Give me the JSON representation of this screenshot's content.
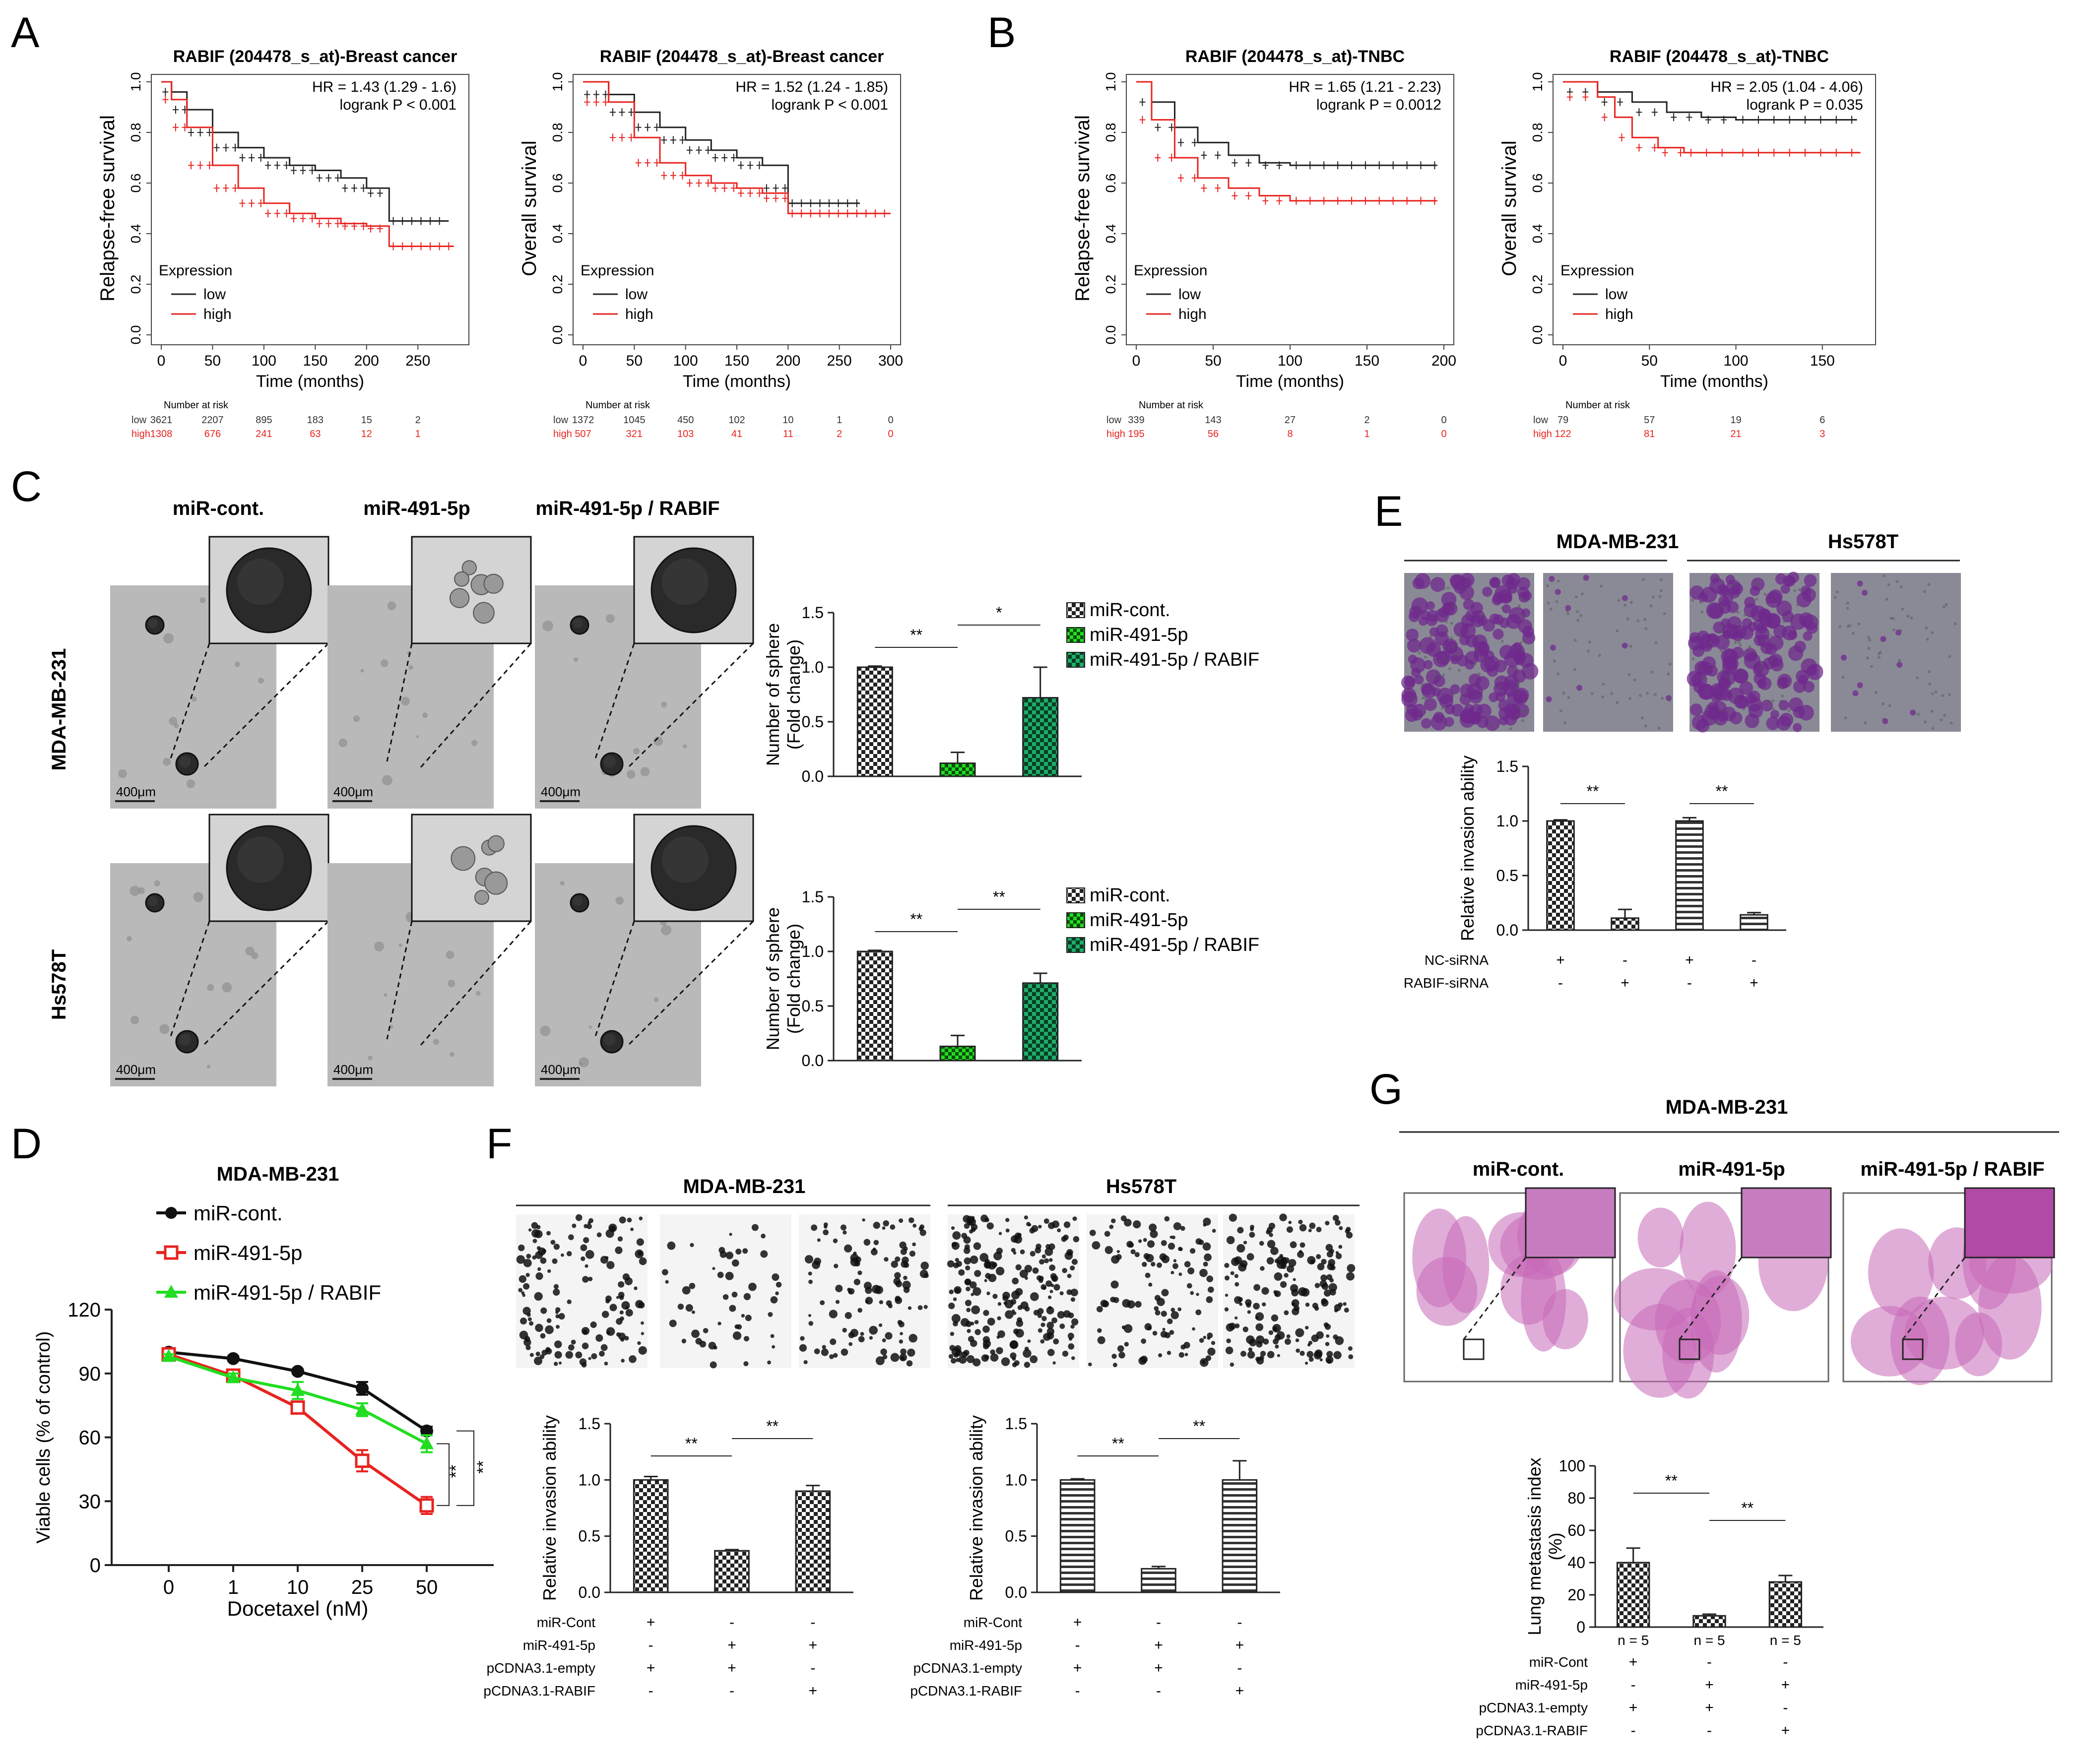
{
  "panel_letters": {
    "A": "A",
    "B": "B",
    "C": "C",
    "D": "D",
    "E": "E",
    "F": "F",
    "G": "G"
  },
  "colors": {
    "low": "#222222",
    "high": "#e8231f",
    "red": "#e8231f",
    "green": "#22dd22",
    "black": "#111111",
    "he_pink": "#c76ab8",
    "crystal": "#6f2a8c",
    "micro_bg": "#b9b9b9"
  },
  "chart_data": [
    {
      "id": "A1",
      "type": "line",
      "title": "RABIF (204478_s_at)-Breast cancer",
      "xlabel": "Time (months)",
      "ylabel": "Relapse-free survival",
      "xlim": [
        0,
        290
      ],
      "ylim": [
        0,
        1.0
      ],
      "xticks": [
        "0",
        "50",
        "100",
        "150",
        "200",
        "250"
      ],
      "yticks": [
        "0.0",
        "0.2",
        "0.4",
        "0.6",
        "0.8",
        "1.0"
      ],
      "hr_text": "HR = 1.43 (1.29 - 1.6)",
      "logrank_text": "logrank   P < 0.001",
      "legend_title": "Expression",
      "series": [
        {
          "name": "low",
          "points": [
            [
              0,
              1.0
            ],
            [
              10,
              0.96
            ],
            [
              25,
              0.89
            ],
            [
              50,
              0.8
            ],
            [
              75,
              0.74
            ],
            [
              100,
              0.7
            ],
            [
              125,
              0.67
            ],
            [
              150,
              0.65
            ],
            [
              175,
              0.62
            ],
            [
              200,
              0.58
            ],
            [
              222,
              0.56
            ],
            [
              222,
              0.45
            ],
            [
              280,
              0.45
            ]
          ]
        },
        {
          "name": "high",
          "points": [
            [
              0,
              1.0
            ],
            [
              10,
              0.93
            ],
            [
              25,
              0.82
            ],
            [
              50,
              0.67
            ],
            [
              75,
              0.58
            ],
            [
              100,
              0.52
            ],
            [
              125,
              0.48
            ],
            [
              150,
              0.46
            ],
            [
              175,
              0.44
            ],
            [
              200,
              0.43
            ],
            [
              222,
              0.42
            ],
            [
              222,
              0.35
            ],
            [
              285,
              0.35
            ]
          ]
        }
      ],
      "risk_header": "Number at risk",
      "risk_times": [
        0,
        50,
        100,
        150,
        200,
        250
      ],
      "risk_low": [
        "3621",
        "2207",
        "895",
        "183",
        "15",
        "2"
      ],
      "risk_high": [
        "1308",
        "676",
        "241",
        "63",
        "12",
        "1"
      ]
    },
    {
      "id": "A2",
      "type": "line",
      "title": "RABIF (204478_s_at)-Breast cancer",
      "xlabel": "Time (months)",
      "ylabel": "Overall survival",
      "xlim": [
        0,
        300
      ],
      "ylim": [
        0,
        1.0
      ],
      "xticks": [
        "0",
        "50",
        "100",
        "150",
        "200",
        "250",
        "300"
      ],
      "yticks": [
        "0.0",
        "0.2",
        "0.4",
        "0.6",
        "0.8",
        "1.0"
      ],
      "hr_text": "HR = 1.52 (1.24 - 1.85)",
      "logrank_text": "logrank   P < 0.001",
      "legend_title": "Expression",
      "series": [
        {
          "name": "low",
          "points": [
            [
              0,
              1.0
            ],
            [
              25,
              0.95
            ],
            [
              50,
              0.88
            ],
            [
              75,
              0.82
            ],
            [
              100,
              0.77
            ],
            [
              125,
              0.73
            ],
            [
              150,
              0.7
            ],
            [
              175,
              0.67
            ],
            [
              200,
              0.58
            ],
            [
              200,
              0.52
            ],
            [
              270,
              0.52
            ]
          ]
        },
        {
          "name": "high",
          "points": [
            [
              0,
              1.0
            ],
            [
              25,
              0.92
            ],
            [
              50,
              0.78
            ],
            [
              75,
              0.68
            ],
            [
              100,
              0.63
            ],
            [
              125,
              0.6
            ],
            [
              150,
              0.58
            ],
            [
              175,
              0.56
            ],
            [
              200,
              0.54
            ],
            [
              200,
              0.48
            ],
            [
              300,
              0.48
            ]
          ]
        }
      ],
      "risk_header": "Number at risk",
      "risk_times": [
        0,
        50,
        100,
        150,
        200,
        250,
        300
      ],
      "risk_low": [
        "1372",
        "1045",
        "450",
        "102",
        "10",
        "1",
        "0"
      ],
      "risk_high": [
        "507",
        "321",
        "103",
        "41",
        "11",
        "2",
        "0"
      ]
    },
    {
      "id": "B1",
      "type": "line",
      "title": "RABIF (204478_s_at)-TNBC",
      "xlabel": "Time (months)",
      "ylabel": "Relapse-free survival",
      "xlim": [
        0,
        200
      ],
      "ylim": [
        0,
        1.0
      ],
      "xticks": [
        "0",
        "50",
        "100",
        "150",
        "200"
      ],
      "yticks": [
        "0.0",
        "0.2",
        "0.4",
        "0.6",
        "0.8",
        "1.0"
      ],
      "hr_text": "HR = 1.65 (1.21 - 2.23)",
      "logrank_text": "logrank P = 0.0012",
      "legend_title": "Expression",
      "series": [
        {
          "name": "low",
          "points": [
            [
              0,
              1.0
            ],
            [
              10,
              0.92
            ],
            [
              25,
              0.82
            ],
            [
              40,
              0.76
            ],
            [
              60,
              0.71
            ],
            [
              80,
              0.68
            ],
            [
              100,
              0.67
            ],
            [
              195,
              0.67
            ]
          ]
        },
        {
          "name": "high",
          "points": [
            [
              0,
              1.0
            ],
            [
              10,
              0.85
            ],
            [
              25,
              0.7
            ],
            [
              40,
              0.62
            ],
            [
              60,
              0.58
            ],
            [
              80,
              0.55
            ],
            [
              100,
              0.53
            ],
            [
              195,
              0.53
            ]
          ]
        }
      ],
      "risk_header": "Number at risk",
      "risk_times": [
        0,
        50,
        100,
        150,
        200
      ],
      "risk_low": [
        "339",
        "143",
        "27",
        "2",
        "0"
      ],
      "risk_high": [
        "195",
        "56",
        "8",
        "1",
        "0"
      ]
    },
    {
      "id": "B2",
      "type": "line",
      "title": "RABIF (204478_s_at)-TNBC",
      "xlabel": "Time (months)",
      "ylabel": "Overall survival",
      "xlim": [
        0,
        175
      ],
      "ylim": [
        0,
        1.0
      ],
      "xticks": [
        "0",
        "50",
        "100",
        "150"
      ],
      "yticks": [
        "0.0",
        "0.2",
        "0.4",
        "0.6",
        "0.8",
        "1.0"
      ],
      "hr_text": "HR = 2.05 (1.04 - 4.06)",
      "logrank_text": "logrank P = 0.035",
      "legend_title": "Expression",
      "series": [
        {
          "name": "low",
          "points": [
            [
              0,
              1.0
            ],
            [
              20,
              0.96
            ],
            [
              40,
              0.92
            ],
            [
              60,
              0.88
            ],
            [
              80,
              0.86
            ],
            [
              100,
              0.85
            ],
            [
              170,
              0.85
            ]
          ]
        },
        {
          "name": "high",
          "points": [
            [
              0,
              1.0
            ],
            [
              20,
              0.94
            ],
            [
              30,
              0.86
            ],
            [
              40,
              0.78
            ],
            [
              55,
              0.74
            ],
            [
              70,
              0.72
            ],
            [
              100,
              0.72
            ],
            [
              172,
              0.72
            ]
          ]
        }
      ],
      "risk_header": "Number at risk",
      "risk_times": [
        0,
        50,
        100,
        150
      ],
      "risk_low": [
        "79",
        "57",
        "19",
        "6"
      ],
      "risk_high": [
        "122",
        "81",
        "21",
        "3"
      ]
    },
    {
      "id": "C1",
      "type": "bar",
      "ylabel": "Number of sphere\n(Fold change)",
      "categories": [
        "miR-cont.",
        "miR-491-5p",
        "miR-491-5p / RABIF"
      ],
      "values": [
        1.0,
        0.12,
        0.72
      ],
      "errors": [
        0.01,
        0.1,
        0.28
      ],
      "ylim": [
        0,
        1.5
      ],
      "yticks": [
        "0.0",
        "0.5",
        "1.0",
        "1.5"
      ],
      "sig": [
        "**",
        "*"
      ]
    },
    {
      "id": "C2",
      "type": "bar",
      "ylabel": "Number of sphere\n(Fold change)",
      "categories": [
        "miR-cont.",
        "miR-491-5p",
        "miR-491-5p / RABIF"
      ],
      "values": [
        1.0,
        0.13,
        0.71
      ],
      "errors": [
        0.01,
        0.1,
        0.09
      ],
      "ylim": [
        0,
        1.5
      ],
      "yticks": [
        "0.0",
        "0.5",
        "1.0",
        "1.5"
      ],
      "sig": [
        "**",
        "**"
      ]
    },
    {
      "id": "D",
      "type": "line",
      "title": "MDA-MB-231",
      "xlabel": "Docetaxel (nM)",
      "ylabel": "Viable cells (% of control)",
      "categories": [
        "0",
        "1",
        "10",
        "25",
        "50"
      ],
      "ylim": [
        0,
        120
      ],
      "yticks": [
        "0",
        "30",
        "60",
        "90",
        "120"
      ],
      "series": [
        {
          "name": "miR-cont.",
          "values": [
            100,
            97,
            91,
            83,
            63
          ],
          "errors": [
            1,
            1,
            1,
            3,
            2
          ]
        },
        {
          "name": "miR-491-5p",
          "values": [
            99,
            89,
            74,
            49,
            28
          ],
          "errors": [
            1,
            1,
            2,
            5,
            4
          ]
        },
        {
          "name": "miR-491-5p / RABIF",
          "values": [
            98,
            88,
            82,
            73,
            57
          ],
          "errors": [
            1,
            2,
            4,
            3,
            4
          ]
        }
      ],
      "sig": [
        "**",
        "**"
      ]
    },
    {
      "id": "E",
      "type": "bar",
      "ylabel": "Relative invasion ability",
      "values": [
        1.0,
        0.11,
        1.0,
        0.14
      ],
      "errors": [
        0.01,
        0.08,
        0.03,
        0.02
      ],
      "ylim": [
        0,
        1.5
      ],
      "yticks": [
        "0.0",
        "0.5",
        "1.0",
        "1.5"
      ],
      "sig": [
        "**",
        "**"
      ],
      "row_labels": [
        "NC-siRNA",
        "RABIF-siRNA"
      ],
      "signs": [
        [
          "+",
          "-",
          "+",
          "-"
        ],
        [
          "-",
          "+",
          "-",
          "+"
        ]
      ]
    },
    {
      "id": "F1",
      "type": "bar",
      "ylabel": "Relative invasion ability",
      "values": [
        1.0,
        0.37,
        0.9
      ],
      "errors": [
        0.03,
        0.01,
        0.05
      ],
      "ylim": [
        0,
        1.5
      ],
      "yticks": [
        "0.0",
        "0.5",
        "1.0",
        "1.5"
      ],
      "sig": [
        "**",
        "**"
      ],
      "row_labels": [
        "miR-Cont",
        "miR-491-5p",
        "pCDNA3.1-empty",
        "pCDNA3.1-RABIF"
      ],
      "signs": [
        [
          "+",
          "-",
          "-"
        ],
        [
          "-",
          "+",
          "+"
        ],
        [
          "+",
          "+",
          "-"
        ],
        [
          "-",
          "-",
          "+"
        ]
      ]
    },
    {
      "id": "F2",
      "type": "bar",
      "ylabel": "Relative invasion ability",
      "values": [
        1.0,
        0.21,
        1.0
      ],
      "errors": [
        0.01,
        0.02,
        0.17
      ],
      "ylim": [
        0,
        1.5
      ],
      "yticks": [
        "0.0",
        "0.5",
        "1.0",
        "1.5"
      ],
      "sig": [
        "**",
        "**"
      ],
      "row_labels": [
        "miR-Cont",
        "miR-491-5p",
        "pCDNA3.1-empty",
        "pCDNA3.1-RABIF"
      ],
      "signs": [
        [
          "+",
          "-",
          "-"
        ],
        [
          "-",
          "+",
          "+"
        ],
        [
          "+",
          "+",
          "-"
        ],
        [
          "-",
          "-",
          "+"
        ]
      ]
    },
    {
      "id": "G",
      "type": "bar",
      "ylabel": "Lung metastasis index\n(%)",
      "values": [
        40,
        7,
        28
      ],
      "errors": [
        9,
        1,
        4
      ],
      "ylim": [
        0,
        100
      ],
      "yticks": [
        "0",
        "20",
        "40",
        "60",
        "80",
        "100"
      ],
      "sig": [
        "**",
        "**"
      ],
      "n_labels": [
        "n = 5",
        "n = 5",
        "n = 5"
      ],
      "row_labels": [
        "miR-Cont",
        "miR-491-5p",
        "pCDNA3.1-empty",
        "pCDNA3.1-RABIF"
      ],
      "signs": [
        [
          "+",
          "-",
          "-"
        ],
        [
          "-",
          "+",
          "+"
        ],
        [
          "+",
          "+",
          "-"
        ],
        [
          "-",
          "-",
          "+"
        ]
      ]
    }
  ],
  "panel_c": {
    "col_titles": [
      "miR-cont.",
      "miR-491-5p",
      "miR-491-5p / RABIF"
    ],
    "row_labels": [
      "MDA-MB-231",
      "Hs578T"
    ],
    "scale": "400μm",
    "legend": [
      "miR-cont.",
      "miR-491-5p",
      "miR-491-5p / RABIF"
    ]
  },
  "panel_d": {
    "legend": [
      "miR-cont.",
      "miR-491-5p",
      "miR-491-5p / RABIF"
    ]
  },
  "panel_e": {
    "groups": [
      "MDA-MB-231",
      "Hs578T"
    ]
  },
  "panel_f": {
    "groups": [
      "MDA-MB-231",
      "Hs578T"
    ]
  },
  "panel_g": {
    "group": "MDA-MB-231",
    "col_titles": [
      "miR-cont.",
      "miR-491-5p",
      "miR-491-5p / RABIF"
    ]
  }
}
